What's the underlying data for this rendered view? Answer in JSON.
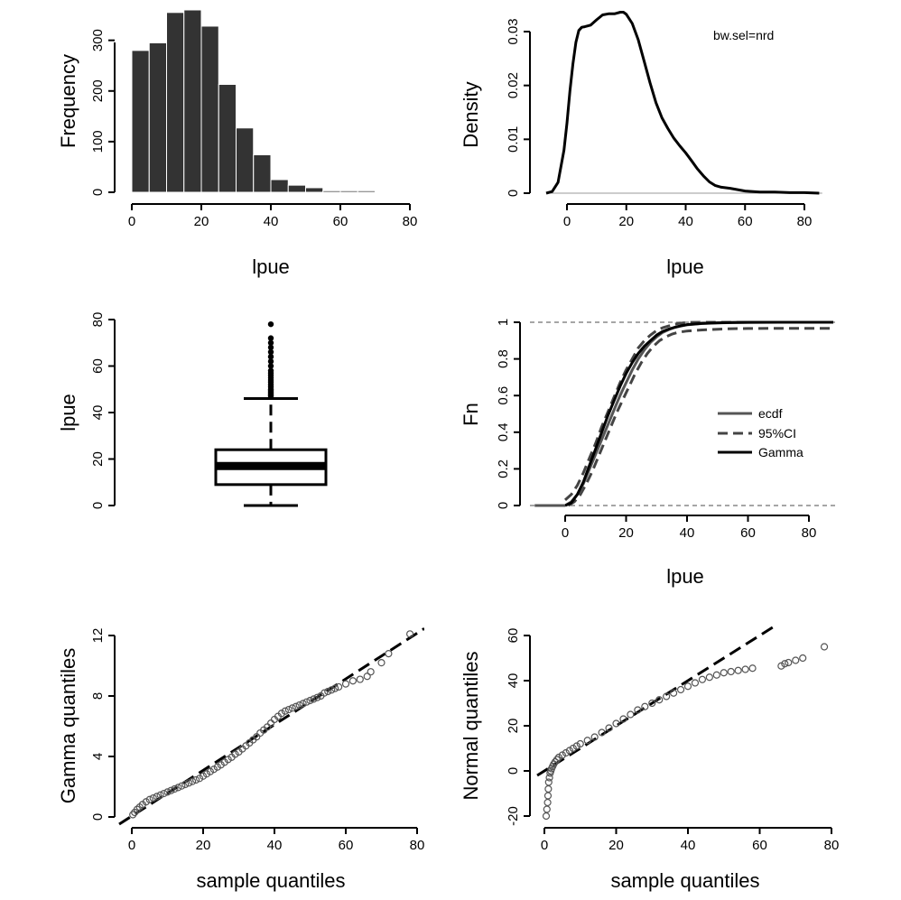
{
  "chart_data": [
    {
      "id": "hist",
      "type": "bar",
      "xlabel": "lpue",
      "ylabel": "Frequency",
      "xlim": [
        0,
        80
      ],
      "ylim": [
        0,
        360
      ],
      "xticks": [
        0,
        20,
        40,
        60,
        80
      ],
      "yticks": [
        0,
        100,
        200,
        300
      ],
      "bin_width": 5,
      "bin_starts": [
        0,
        5,
        10,
        15,
        20,
        25,
        30,
        35,
        40,
        45,
        50,
        55,
        60,
        65,
        70,
        75
      ],
      "values": [
        280,
        295,
        355,
        360,
        328,
        213,
        127,
        74,
        25,
        14,
        9,
        3,
        3,
        3,
        1,
        1
      ],
      "bar_color": "#333333"
    },
    {
      "id": "density",
      "type": "line",
      "xlabel": "lpue",
      "ylabel": "Density",
      "annotation": "bw.sel=nrd",
      "xlim": [
        -7,
        86
      ],
      "ylim": [
        0,
        0.034
      ],
      "xticks": [
        0,
        20,
        40,
        60,
        80
      ],
      "yticks": [
        0,
        0.01,
        0.02,
        0.03
      ],
      "x": [
        -7,
        -5,
        -3,
        -1,
        0,
        1,
        2,
        3,
        4,
        5,
        6,
        8,
        10,
        12,
        14,
        16,
        18,
        19,
        20,
        22,
        24,
        26,
        28,
        30,
        32,
        34,
        36,
        38,
        40,
        42,
        44,
        46,
        48,
        50,
        52,
        55,
        60,
        65,
        70,
        75,
        80,
        85
      ],
      "y": [
        0,
        0.0003,
        0.002,
        0.008,
        0.013,
        0.019,
        0.024,
        0.028,
        0.0302,
        0.0308,
        0.0309,
        0.0312,
        0.0322,
        0.0331,
        0.0333,
        0.0333,
        0.0336,
        0.0336,
        0.0332,
        0.0315,
        0.0285,
        0.0245,
        0.0205,
        0.0168,
        0.014,
        0.012,
        0.0102,
        0.0088,
        0.0075,
        0.006,
        0.0045,
        0.0032,
        0.0021,
        0.0014,
        0.0011,
        0.0009,
        0.0004,
        0.0002,
        0.0002,
        0.0001,
        0.0001,
        0
      ],
      "line_color": "#000000"
    },
    {
      "id": "boxplot",
      "type": "box",
      "ylabel": "lpue",
      "ylim": [
        0,
        80
      ],
      "yticks": [
        0,
        20,
        40,
        60,
        80
      ],
      "whisker_low": 0,
      "q1": 9,
      "median": 17,
      "q3": 24,
      "whisker_high": 46,
      "outliers": [
        47,
        47.5,
        48,
        48.5,
        49,
        49.5,
        50,
        51,
        52,
        53,
        54,
        55,
        56,
        57,
        58,
        60,
        62,
        64,
        66,
        68,
        70,
        72,
        78
      ]
    },
    {
      "id": "ecdf",
      "type": "line",
      "xlabel": "lpue",
      "ylabel": "Fn",
      "xlim": [
        -10,
        88
      ],
      "ylim": [
        0,
        1
      ],
      "xticks": [
        0,
        20,
        40,
        60,
        80
      ],
      "yticks": [
        0,
        0.2,
        0.4,
        0.6,
        0.8,
        1
      ],
      "ytick_labels": [
        "0",
        "0.2",
        "0.4",
        "0.6",
        "0.8",
        "1"
      ],
      "legend": {
        "position": "right",
        "entries": [
          "ecdf",
          "95%CI",
          "Gamma"
        ]
      },
      "series": [
        {
          "name": "ecdf",
          "style": "solid-gray",
          "x": [
            0,
            2,
            4,
            6,
            8,
            10,
            12,
            14,
            16,
            18,
            20,
            22,
            24,
            26,
            28,
            30,
            32,
            34,
            36,
            38,
            40,
            45,
            50,
            55,
            60,
            70,
            80,
            88
          ],
          "y": [
            0,
            0.02,
            0.06,
            0.12,
            0.2,
            0.28,
            0.36,
            0.44,
            0.52,
            0.6,
            0.67,
            0.74,
            0.8,
            0.85,
            0.89,
            0.92,
            0.945,
            0.96,
            0.972,
            0.98,
            0.986,
            0.993,
            0.996,
            0.998,
            0.999,
            1,
            1,
            1
          ]
        },
        {
          "name": "95%CI",
          "style": "dashed",
          "x": [
            0,
            2,
            4,
            6,
            8,
            10,
            12,
            14,
            16,
            18,
            20,
            22,
            24,
            26,
            28,
            30,
            32,
            34,
            36,
            38,
            40,
            45,
            50,
            55,
            60,
            70,
            80,
            88
          ],
          "y": [
            0.03,
            0.06,
            0.11,
            0.18,
            0.26,
            0.34,
            0.43,
            0.51,
            0.59,
            0.67,
            0.74,
            0.8,
            0.86,
            0.9,
            0.93,
            0.955,
            0.97,
            0.98,
            0.99,
            0.995,
            0.999,
            1,
            1,
            1,
            1,
            1,
            1,
            1
          ]
        },
        {
          "name": "95%CI",
          "style": "dashed",
          "x": [
            1,
            3,
            5,
            7,
            9,
            11,
            13,
            15,
            17,
            19,
            21,
            23,
            25,
            27,
            29,
            31,
            33,
            35,
            37,
            40,
            45,
            50,
            55,
            60,
            70,
            80,
            88
          ],
          "y": [
            0,
            0.02,
            0.06,
            0.12,
            0.19,
            0.27,
            0.35,
            0.43,
            0.51,
            0.58,
            0.65,
            0.72,
            0.78,
            0.83,
            0.87,
            0.9,
            0.92,
            0.935,
            0.945,
            0.952,
            0.958,
            0.962,
            0.965,
            0.966,
            0.967,
            0.967,
            0.967
          ]
        },
        {
          "name": "Gamma",
          "style": "solid-black",
          "x": [
            0,
            2,
            4,
            6,
            8,
            10,
            12,
            14,
            16,
            18,
            20,
            22,
            24,
            26,
            28,
            30,
            32,
            34,
            36,
            38,
            40,
            45,
            50,
            55,
            60,
            70,
            80,
            88
          ],
          "y": [
            0,
            0.015,
            0.06,
            0.13,
            0.22,
            0.31,
            0.4,
            0.49,
            0.57,
            0.65,
            0.72,
            0.78,
            0.83,
            0.87,
            0.9,
            0.93,
            0.95,
            0.963,
            0.973,
            0.981,
            0.987,
            0.994,
            0.997,
            0.999,
            1,
            1,
            1,
            1
          ]
        }
      ],
      "reference_lines": [
        0,
        1
      ]
    },
    {
      "id": "qq_gamma",
      "type": "scatter",
      "xlabel": "sample quantiles",
      "ylabel": "Gamma quantiles",
      "xlim": [
        0,
        80
      ],
      "ylim": [
        0,
        12
      ],
      "xticks": [
        0,
        20,
        40,
        60,
        80
      ],
      "yticks": [
        0,
        4,
        8,
        12
      ],
      "points_x": [
        0.3,
        0.8,
        1.5,
        2.2,
        3,
        4,
        5,
        6,
        7,
        8,
        9,
        10,
        11,
        12,
        13,
        14,
        15,
        16,
        17,
        18,
        19,
        20,
        21,
        22,
        23,
        24,
        25,
        26,
        27,
        28,
        29,
        30,
        31,
        32,
        33,
        34,
        35,
        36,
        37,
        38,
        39,
        40,
        41,
        42,
        43,
        44,
        45,
        46,
        47,
        48,
        49,
        50,
        51,
        52,
        53,
        54,
        55,
        56,
        57,
        58,
        60,
        62,
        64,
        66,
        67,
        70,
        72,
        78
      ],
      "points_y": [
        0.15,
        0.3,
        0.5,
        0.65,
        0.82,
        1.0,
        1.15,
        1.25,
        1.35,
        1.45,
        1.55,
        1.65,
        1.75,
        1.85,
        1.95,
        2.05,
        2.15,
        2.25,
        2.35,
        2.45,
        2.55,
        2.7,
        2.85,
        3.0,
        3.15,
        3.3,
        3.45,
        3.62,
        3.8,
        3.95,
        4.15,
        4.3,
        4.5,
        4.7,
        4.9,
        5.1,
        5.3,
        5.55,
        5.75,
        5.95,
        6.2,
        6.45,
        6.65,
        6.85,
        7.0,
        7.1,
        7.2,
        7.3,
        7.4,
        7.5,
        7.6,
        7.7,
        7.8,
        7.9,
        8.0,
        8.2,
        8.3,
        8.4,
        8.5,
        8.6,
        8.8,
        9.0,
        9.1,
        9.3,
        9.6,
        10.2,
        10.8,
        12.1
      ],
      "ref_line": {
        "x": [
          0,
          80
        ],
        "y": [
          0,
          12.1
        ]
      }
    },
    {
      "id": "qq_normal",
      "type": "scatter",
      "xlabel": "sample quantiles",
      "ylabel": "Normal quantiles",
      "xlim": [
        0,
        80
      ],
      "ylim": [
        -20,
        60
      ],
      "xticks": [
        0,
        20,
        40,
        60,
        80
      ],
      "yticks": [
        -20,
        0,
        20,
        40,
        60
      ],
      "points_x": [
        0.5,
        0.7,
        0.9,
        1.0,
        1.1,
        1.2,
        1.4,
        1.6,
        1.8,
        2.0,
        2.3,
        2.6,
        3.0,
        3.5,
        4,
        5,
        6,
        7,
        8,
        9,
        10,
        12,
        14,
        16,
        18,
        20,
        22,
        24,
        26,
        28,
        30,
        32,
        34,
        36,
        38,
        40,
        42,
        44,
        46,
        48,
        50,
        52,
        54,
        56,
        58,
        66,
        67,
        68,
        70,
        72,
        78
      ],
      "points_y": [
        -20,
        -17,
        -14,
        -11,
        -8,
        -5,
        -3,
        -1,
        0,
        1,
        2,
        3,
        4,
        5,
        6,
        7,
        8,
        9,
        10,
        11,
        12,
        13.5,
        15,
        17,
        19,
        21,
        23,
        25,
        27,
        28.5,
        30,
        31.5,
        33,
        34.5,
        36,
        37.5,
        39,
        40.5,
        41.5,
        42.5,
        43.5,
        44,
        44.5,
        45,
        45.5,
        46.5,
        47.5,
        48,
        49,
        50,
        55
      ],
      "ref_line": {
        "x": [
          -2,
          65
        ],
        "y": [
          -2,
          65
        ]
      }
    }
  ]
}
